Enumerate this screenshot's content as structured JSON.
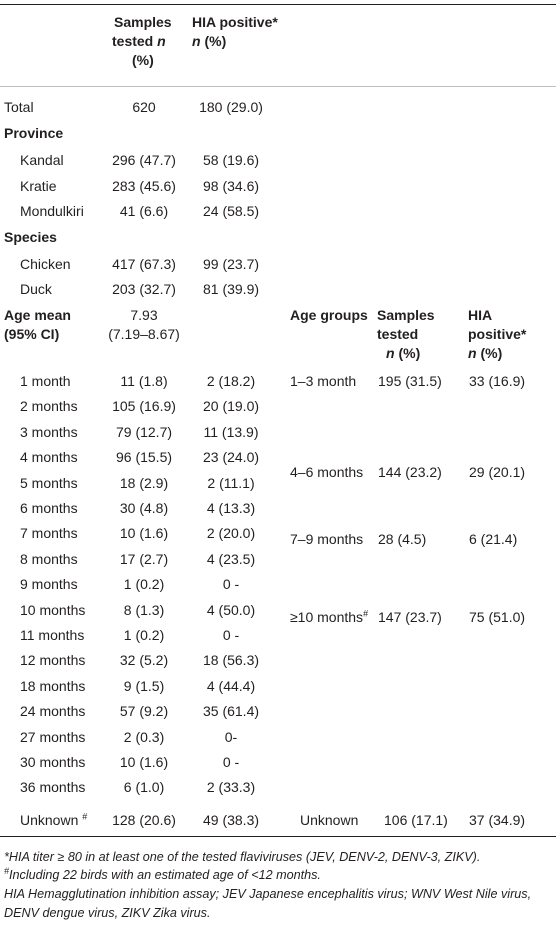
{
  "header": {
    "samples_tested": [
      "Samples",
      "tested n",
      "(%)"
    ],
    "hia_positive": [
      "HIA positive*",
      "n (%)"
    ]
  },
  "total": {
    "label": "Total",
    "samples": "620",
    "hia": "180 (29.0)"
  },
  "province": {
    "heading": "Province",
    "rows": [
      {
        "label": "Kandal",
        "samples": "296 (47.7)",
        "hia": "58 (19.6)"
      },
      {
        "label": "Kratie",
        "samples": "283 (45.6)",
        "hia": "98 (34.6)"
      },
      {
        "label": "Mondulkiri",
        "samples": "41 (6.6)",
        "hia": "24 (58.5)"
      }
    ]
  },
  "species": {
    "heading": "Species",
    "rows": [
      {
        "label": "Chicken",
        "samples": "417 (67.3)",
        "hia": "99 (23.7)"
      },
      {
        "label": "Duck",
        "samples": "203 (32.7)",
        "hia": "81 (39.9)"
      }
    ]
  },
  "age": {
    "heading": [
      "Age mean",
      "(95% CI)"
    ],
    "mean": [
      "7.93",
      "(7.19–8.67)"
    ],
    "group_header": {
      "label": "Age groups",
      "samples": [
        "Samples",
        "tested",
        "n (%)"
      ],
      "hia": [
        "HIA",
        "positive*",
        "n (%)"
      ]
    },
    "rows": [
      {
        "label": "1 month",
        "samples": "11 (1.8)",
        "hia": "2 (18.2)"
      },
      {
        "label": "2 months",
        "samples": "105 (16.9)",
        "hia": "20 (19.0)"
      },
      {
        "label": "3 months",
        "samples": "79 (12.7)",
        "hia": "11 (13.9)"
      },
      {
        "label": "4 months",
        "samples": "96 (15.5)",
        "hia": "23 (24.0)"
      },
      {
        "label": "5 months",
        "samples": "18 (2.9)",
        "hia": "2 (11.1)"
      },
      {
        "label": "6 months",
        "samples": "30 (4.8)",
        "hia": "4 (13.3)"
      },
      {
        "label": "7 months",
        "samples": "10 (1.6)",
        "hia": "2 (20.0)"
      },
      {
        "label": "8 months",
        "samples": "17 (2.7)",
        "hia": "4 (23.5)"
      },
      {
        "label": "9 months",
        "samples": "1 (0.2)",
        "hia": "0 -"
      },
      {
        "label": "10 months",
        "samples": "8 (1.3)",
        "hia": "4 (50.0)"
      },
      {
        "label": "11 months",
        "samples": "1 (0.2)",
        "hia": "0 -"
      },
      {
        "label": "12 months",
        "samples": "32 (5.2)",
        "hia": "18 (56.3)"
      },
      {
        "label": "18 months",
        "samples": "9 (1.5)",
        "hia": "4 (44.4)"
      },
      {
        "label": "24 months",
        "samples": "57 (9.2)",
        "hia": "35 (61.4)"
      },
      {
        "label": "27 months",
        "samples": "2 (0.3)",
        "hia": "0-"
      },
      {
        "label": "30 months",
        "samples": "10 (1.6)",
        "hia": "0 -"
      },
      {
        "label": "36 months",
        "samples": "6 (1.0)",
        "hia": "2 (33.3)"
      }
    ],
    "unknown": {
      "label": "Unknown",
      "mark": "#",
      "samples": "128 (20.6)",
      "hia": "49 (38.3)"
    },
    "groups": [
      {
        "label": "1–3 month",
        "samples": "195 (31.5)",
        "hia": "33 (16.9)"
      },
      {
        "label": "4–6 months",
        "samples": "144 (23.2)",
        "hia": "29 (20.1)"
      },
      {
        "label": "7–9 months",
        "samples": "28 (4.5)",
        "hia": "6 (21.4)"
      },
      {
        "label": "≥10 months",
        "mark": "#",
        "samples": "147 (23.7)",
        "hia": "75 (51.0)"
      },
      {
        "label": "Unknown",
        "samples": "106 (17.1)",
        "hia": "37 (34.9)"
      }
    ]
  },
  "footnotes": [
    "*HIA titer ≥ 80 in at least one of the tested flaviviruses (JEV, DENV-2, DENV-3, ZIKV).",
    "Including 22 birds with an estimated age of <12 months.",
    "HIA Hemagglutination inhibition assay; JEV Japanese encephalitis virus; WNV West Nile virus, DENV dengue virus, ZIKV Zika virus."
  ],
  "footnote_mark": "#"
}
